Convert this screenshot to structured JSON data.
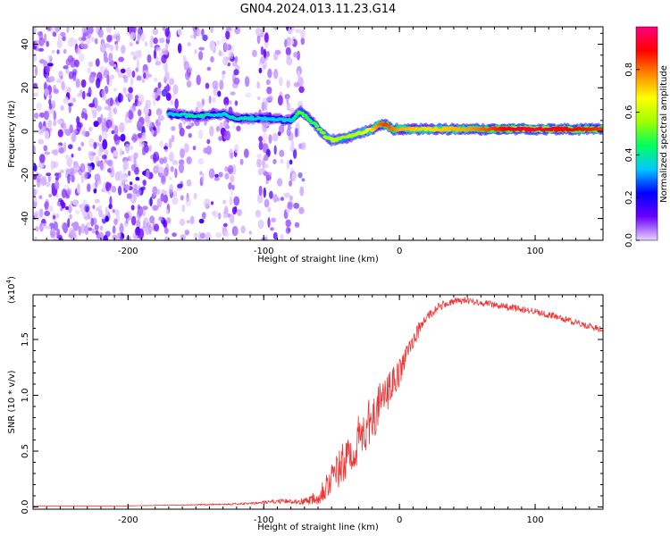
{
  "title": "GN04.2024.013.11.23.G14",
  "chart_data": [
    {
      "type": "heatmap",
      "name": "spectrogram",
      "xlabel": "Height of straight line (km)",
      "ylabel": "Frequency (Hz)",
      "xlim": [
        -270,
        150
      ],
      "ylim": [
        -50,
        48
      ],
      "x_ticks": [
        -200,
        -100,
        0,
        100
      ],
      "y_ticks": [
        -40,
        -20,
        0,
        20,
        40
      ],
      "colorbar": {
        "label": "Normalized spectral amplitude",
        "range": [
          0,
          1
        ],
        "ticks": [
          "0.0",
          "0.2",
          "0.4",
          "0.6",
          "0.8"
        ],
        "colors": [
          "#e8d4ff",
          "#6a00ff",
          "#0000ff",
          "#00c8ff",
          "#00ff60",
          "#a0ff00",
          "#ffff00",
          "#ff8800",
          "#ff0000",
          "#ff0080"
        ]
      },
      "noise_region_x": [
        -270,
        -70
      ],
      "ridge": {
        "x": [
          -170,
          -150,
          -130,
          -120,
          -100,
          -80,
          -73,
          -65,
          -55,
          -50,
          -40,
          -30,
          -20,
          -15,
          -10,
          -5,
          0,
          20,
          50,
          80,
          100,
          120,
          150
        ],
        "frequency": [
          8,
          7,
          8,
          6,
          6,
          5,
          9,
          5,
          -2,
          -4,
          -3,
          -1,
          1,
          3,
          3,
          1,
          1,
          1,
          1,
          1,
          1,
          1,
          1
        ],
        "amplitude": [
          0.35,
          0.4,
          0.35,
          0.4,
          0.35,
          0.35,
          0.5,
          0.45,
          0.55,
          0.6,
          0.55,
          0.6,
          0.7,
          0.8,
          0.85,
          0.8,
          0.75,
          0.7,
          0.75,
          0.9,
          0.95,
          0.9,
          0.85
        ]
      }
    },
    {
      "type": "line",
      "name": "snr",
      "xlabel": "Height of straight line (km)",
      "ylabel": "SNR (10 * v/v)",
      "scale_label": "(x10",
      "scale_exp": "4",
      "scale_close": ")",
      "xlim": [
        -270,
        150
      ],
      "ylim": [
        -0.02,
        1.9
      ],
      "x_ticks": [
        -200,
        -100,
        0,
        100
      ],
      "y_ticks": [
        "0.0",
        "0.5",
        "1.0",
        "1.5"
      ],
      "color": "#ee3333",
      "series": [
        {
          "x": [
            -270,
            -200,
            -150,
            -110,
            -100,
            -90,
            -80,
            -70,
            -60,
            -55,
            -50,
            -45,
            -40,
            -35,
            -30,
            -25,
            -20,
            -15,
            -10,
            -5,
            0,
            5,
            10,
            20,
            30,
            40,
            50,
            60,
            70,
            80,
            90,
            100,
            110,
            120,
            130,
            140,
            150
          ],
          "y": [
            0.01,
            0.01,
            0.02,
            0.03,
            0.04,
            0.05,
            0.05,
            0.05,
            0.1,
            0.18,
            0.25,
            0.33,
            0.4,
            0.5,
            0.6,
            0.7,
            0.8,
            0.9,
            1.0,
            1.1,
            1.2,
            1.35,
            1.5,
            1.7,
            1.8,
            1.84,
            1.85,
            1.83,
            1.81,
            1.79,
            1.77,
            1.75,
            1.72,
            1.69,
            1.65,
            1.62,
            1.58
          ],
          "noise": [
            0,
            0,
            0.005,
            0.01,
            0.015,
            0.02,
            0.02,
            0.03,
            0.08,
            0.12,
            0.15,
            0.18,
            0.2,
            0.2,
            0.22,
            0.22,
            0.2,
            0.2,
            0.18,
            0.15,
            0.12,
            0.1,
            0.08,
            0.05,
            0.04,
            0.03,
            0.03,
            0.03,
            0.03,
            0.03,
            0.03,
            0.03,
            0.03,
            0.03,
            0.03,
            0.03,
            0.03
          ]
        }
      ]
    }
  ]
}
